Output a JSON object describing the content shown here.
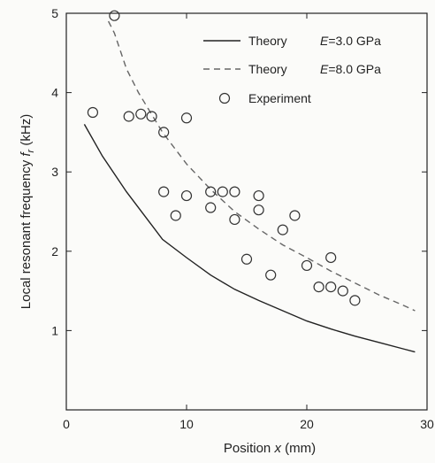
{
  "chart_data": {
    "type": "scatter",
    "xlabel": "Position x (mm)",
    "ylabel": "Local resonant frequency f_r (kHz)",
    "xlim": [
      0,
      30
    ],
    "ylim": [
      0,
      5
    ],
    "xticks": [
      0,
      10,
      20,
      30
    ],
    "yticks": [
      1,
      2,
      3,
      4,
      5
    ],
    "grid": false,
    "legend_position": "top-right",
    "series": [
      {
        "name": "Theory E=3.0 GPa",
        "legend": {
          "label": "Theory",
          "param_var": "E",
          "param_val": "=3.0 GPa"
        },
        "style": "solid",
        "x": [
          1.5,
          3,
          5,
          7,
          8,
          10,
          12,
          14,
          16,
          18,
          20,
          22,
          24,
          26,
          28,
          29
        ],
        "y": [
          3.6,
          3.2,
          2.75,
          2.35,
          2.15,
          1.92,
          1.7,
          1.52,
          1.38,
          1.25,
          1.12,
          1.02,
          0.93,
          0.85,
          0.77,
          0.73
        ]
      },
      {
        "name": "Theory E=8.0 GPa",
        "legend": {
          "label": "Theory",
          "param_var": "E",
          "param_val": "=8.0 GPa"
        },
        "style": "dashed",
        "x": [
          3.5,
          4,
          5,
          6,
          7,
          8,
          10,
          12,
          14,
          16,
          18,
          20,
          22,
          24,
          26,
          28,
          29
        ],
        "y": [
          4.9,
          4.75,
          4.3,
          4.0,
          3.75,
          3.5,
          3.1,
          2.78,
          2.5,
          2.28,
          2.08,
          1.92,
          1.75,
          1.6,
          1.45,
          1.32,
          1.25
        ]
      },
      {
        "name": "Experiment",
        "legend": {
          "label": "Experiment"
        },
        "style": "marker",
        "x": [
          2.2,
          4.0,
          5.2,
          6.2,
          7.1,
          8.1,
          8.1,
          9.1,
          10.0,
          10.0,
          12.0,
          12.0,
          13.0,
          14.0,
          14.0,
          15.0,
          16.0,
          16.0,
          17.0,
          18.0,
          19.0,
          20.0,
          21.0,
          22.0,
          22.0,
          23.0,
          24.0
        ],
        "y": [
          3.75,
          4.97,
          3.7,
          3.73,
          3.7,
          3.5,
          2.75,
          2.45,
          3.68,
          2.7,
          2.75,
          2.55,
          2.75,
          2.75,
          2.4,
          1.9,
          2.7,
          2.52,
          1.7,
          2.27,
          2.45,
          1.82,
          1.55,
          1.92,
          1.55,
          1.5,
          1.38
        ]
      }
    ]
  }
}
